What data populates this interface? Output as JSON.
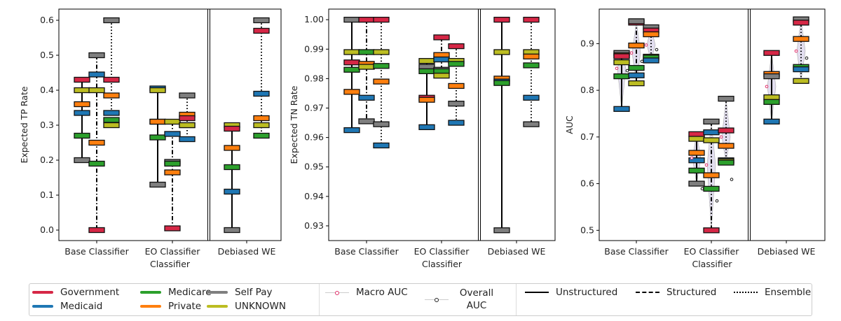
{
  "payer_colors": {
    "Government": "#d62746",
    "Medicaid": "#1f77b4",
    "Medicare": "#2ca02c",
    "Private": "#ff7f0e",
    "Self Pay": "#7f7f7f",
    "UNKNOWN": "#bcbd22"
  },
  "line_styles": {
    "Unstructured": "solid",
    "Structured": "dashdot",
    "Ensemble": "dotted"
  },
  "legend": {
    "payers": [
      "Government",
      "Medicaid",
      "Medicare",
      "Private",
      "Self Pay",
      "UNKNOWN"
    ],
    "macro_auc": "Macro AUC",
    "overall_auc": "Overall AUC",
    "lines": [
      "Unstructured",
      "Structured",
      "Ensemble"
    ]
  },
  "chart_data": [
    {
      "type": "box-marker",
      "ylabel": "Expected TP Rate",
      "xlabel": "Classifier",
      "ylim": [
        -0.03,
        0.632
      ],
      "yticks": [
        "0.0",
        "0.1",
        "0.2",
        "0.3",
        "0.4",
        "0.5",
        "0.6"
      ],
      "categories": [
        "Base Classifier",
        "EO Classifier",
        "Debiased WE"
      ],
      "groups": [
        {
          "category": "Base Classifier",
          "model": "Unstructured",
          "values": {
            "Government": 0.43,
            "UNKNOWN": 0.4,
            "Private": 0.36,
            "Medicaid": 0.335,
            "Medicare": 0.27,
            "Self Pay": 0.2
          }
        },
        {
          "category": "Base Classifier",
          "model": "Structured",
          "values": {
            "Self Pay": 0.5,
            "Medicaid": 0.445,
            "UNKNOWN": 0.4,
            "Private": 0.25,
            "Medicare": 0.19,
            "Government": 0.0
          }
        },
        {
          "category": "Base Classifier",
          "model": "Ensemble",
          "values": {
            "Self Pay": 0.6,
            "Government": 0.43,
            "Private": 0.385,
            "Medicaid": 0.335,
            "Medicare": 0.315,
            "UNKNOWN": 0.3
          }
        },
        {
          "category": "EO Classifier",
          "model": "Unstructured",
          "values": {
            "Medicaid": 0.405,
            "UNKNOWN": 0.4,
            "Government": 0.31,
            "Private": 0.31,
            "Medicare": 0.265,
            "Self Pay": 0.13
          }
        },
        {
          "category": "EO Classifier",
          "model": "Structured",
          "values": {
            "UNKNOWN": 0.31,
            "Medicaid": 0.275,
            "Self Pay": 0.195,
            "Medicare": 0.19,
            "Private": 0.165,
            "Government": 0.005
          }
        },
        {
          "category": "EO Classifier",
          "model": "Ensemble",
          "values": {
            "Self Pay": 0.385,
            "Private": 0.33,
            "Government": 0.32,
            "Medicare": 0.3,
            "UNKNOWN": 0.3,
            "Medicaid": 0.26
          }
        },
        {
          "category": "Debiased WE",
          "model": "Unstructured",
          "values": {
            "UNKNOWN": 0.3,
            "Government": 0.29,
            "Private": 0.235,
            "Medicare": 0.18,
            "Medicaid": 0.11,
            "Self Pay": 0.0
          }
        },
        {
          "category": "Debiased WE",
          "model": "Ensemble",
          "values": {
            "Self Pay": 0.6,
            "Government": 0.57,
            "Medicaid": 0.39,
            "Private": 0.32,
            "UNKNOWN": 0.3,
            "Medicare": 0.27
          }
        }
      ]
    },
    {
      "type": "box-marker",
      "ylabel": "Expected TN Rate",
      "xlabel": "Classifier",
      "ylim": [
        0.925,
        1.0036
      ],
      "yticks": [
        "0.93",
        "0.94",
        "0.95",
        "0.96",
        "0.97",
        "0.98",
        "0.99",
        "1.00"
      ],
      "categories": [
        "Base Classifier",
        "EO Classifier",
        "Debiased WE"
      ],
      "groups": [
        {
          "category": "Base Classifier",
          "model": "Unstructured",
          "values": {
            "Self Pay": 1.0,
            "UNKNOWN": 0.989,
            "Government": 0.9855,
            "Medicare": 0.983,
            "Private": 0.9755,
            "Medicaid": 0.9625
          }
        },
        {
          "category": "Base Classifier",
          "model": "Structured",
          "values": {
            "Government": 1.0,
            "Medicare": 0.989,
            "Private": 0.985,
            "UNKNOWN": 0.984,
            "Medicaid": 0.9735,
            "Self Pay": 0.9655
          }
        },
        {
          "category": "Base Classifier",
          "model": "Ensemble",
          "values": {
            "Government": 1.0,
            "UNKNOWN": 0.989,
            "Medicare": 0.9843,
            "Private": 0.979,
            "Self Pay": 0.9645,
            "Medicaid": 0.9573
          }
        },
        {
          "category": "EO Classifier",
          "model": "Unstructured",
          "values": {
            "UNKNOWN": 0.986,
            "Self Pay": 0.984,
            "Medicare": 0.9825,
            "Government": 0.9735,
            "Private": 0.9728,
            "Medicaid": 0.9635
          }
        },
        {
          "category": "EO Classifier",
          "model": "Structured",
          "values": {
            "Government": 0.994,
            "Private": 0.988,
            "Medicaid": 0.9865,
            "Self Pay": 0.983,
            "Medicare": 0.9825,
            "UNKNOWN": 0.981
          }
        },
        {
          "category": "EO Classifier",
          "model": "Ensemble",
          "values": {
            "Government": 0.991,
            "UNKNOWN": 0.986,
            "Medicare": 0.985,
            "Private": 0.9775,
            "Self Pay": 0.9715,
            "Medicaid": 0.965
          }
        },
        {
          "category": "Debiased WE",
          "model": "Unstructured",
          "values": {
            "Government": 1.0,
            "UNKNOWN": 0.989,
            "Private": 0.98,
            "Medicaid": 0.979,
            "Medicare": 0.9785,
            "Self Pay": 0.9285
          }
        },
        {
          "category": "Debiased WE",
          "model": "Ensemble",
          "values": {
            "Government": 1.0,
            "UNKNOWN": 0.989,
            "Private": 0.9875,
            "Medicare": 0.9845,
            "Medicaid": 0.9735,
            "Self Pay": 0.9645
          }
        }
      ]
    },
    {
      "type": "box-marker",
      "ylabel": "AUC",
      "xlabel": "Classifier",
      "ylim": [
        0.478,
        0.974
      ],
      "yticks": [
        "0.5",
        "0.6",
        "0.7",
        "0.8",
        "0.9"
      ],
      "categories": [
        "Base Classifier",
        "EO Classifier",
        "Debiased WE"
      ],
      "groups": [
        {
          "category": "Base Classifier",
          "model": "Unstructured",
          "macro_auc": 0.847,
          "overall_auc": 0.842,
          "values": {
            "Self Pay": 0.88,
            "Private": 0.875,
            "Government": 0.873,
            "UNKNOWN": 0.86,
            "Medicare": 0.83,
            "Medicaid": 0.76
          }
        },
        {
          "category": "Base Classifier",
          "model": "Structured",
          "macro_auc": 0.88,
          "overall_auc": 0.862,
          "values": {
            "Government": 0.945,
            "Self Pay": 0.948,
            "Private": 0.896,
            "Medicare": 0.848,
            "Medicaid": 0.832,
            "UNKNOWN": 0.815
          }
        },
        {
          "category": "Base Classifier",
          "model": "Ensemble",
          "macro_auc": 0.897,
          "overall_auc": 0.887,
          "values": {
            "Self Pay": 0.935,
            "Government": 0.928,
            "Private": 0.92,
            "UNKNOWN": 0.872,
            "Medicare": 0.87,
            "Medicaid": 0.864
          }
        },
        {
          "category": "EO Classifier",
          "model": "Unstructured",
          "macro_auc": 0.655,
          "overall_auc": 0.589,
          "values": {
            "Government": 0.706,
            "UNKNOWN": 0.696,
            "Private": 0.666,
            "Medicaid": 0.65,
            "Medicare": 0.628,
            "Self Pay": 0.6
          }
        },
        {
          "category": "EO Classifier",
          "model": "Structured",
          "macro_auc": 0.64,
          "overall_auc": 0.563,
          "values": {
            "Self Pay": 0.733,
            "Medicaid": 0.71,
            "UNKNOWN": 0.693,
            "Private": 0.618,
            "Medicare": 0.589,
            "Government": 0.5
          }
        },
        {
          "category": "EO Classifier",
          "model": "Ensemble",
          "macro_auc": 0.7,
          "overall_auc": 0.609,
          "values": {
            "Self Pay": 0.782,
            "Government": 0.714,
            "Private": 0.681,
            "Medicaid": 0.65,
            "UNKNOWN": 0.648,
            "Medicare": 0.645
          }
        },
        {
          "category": "Debiased WE",
          "model": "Unstructured",
          "macro_auc": 0.808,
          "values": {
            "Government": 0.88,
            "Private": 0.835,
            "Self Pay": 0.83,
            "UNKNOWN": 0.785,
            "Medicare": 0.775,
            "Medicaid": 0.733
          }
        },
        {
          "category": "Debiased WE",
          "model": "Ensemble",
          "macro_auc": 0.884,
          "overall_auc": 0.869,
          "values": {
            "Self Pay": 0.952,
            "Government": 0.945,
            "Private": 0.91,
            "Medicare": 0.85,
            "Medicaid": 0.845,
            "UNKNOWN": 0.82
          }
        }
      ]
    }
  ]
}
